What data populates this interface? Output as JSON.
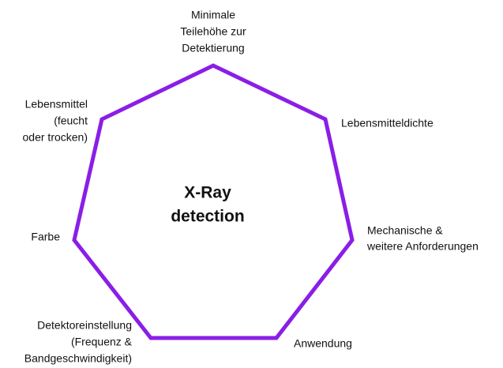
{
  "center": [
    "X-Ray",
    "detection"
  ],
  "nodes": [
    {
      "label": [
        "Minimale",
        "Teilehöhe zur",
        "Detektierung"
      ]
    },
    {
      "label": [
        "Lebensmitteldichte"
      ]
    },
    {
      "label": [
        "Mechanische &",
        "weitere Anforderungen"
      ]
    },
    {
      "label": [
        "Anwendung"
      ]
    },
    {
      "label": [
        "Detektoreinstellung",
        "(Frequenz &",
        "Bandgeschwindigkeit)"
      ]
    },
    {
      "label": [
        "Farbe"
      ]
    },
    {
      "label": [
        "Lebensmittel",
        "(feucht",
        "oder trocken)"
      ]
    }
  ]
}
